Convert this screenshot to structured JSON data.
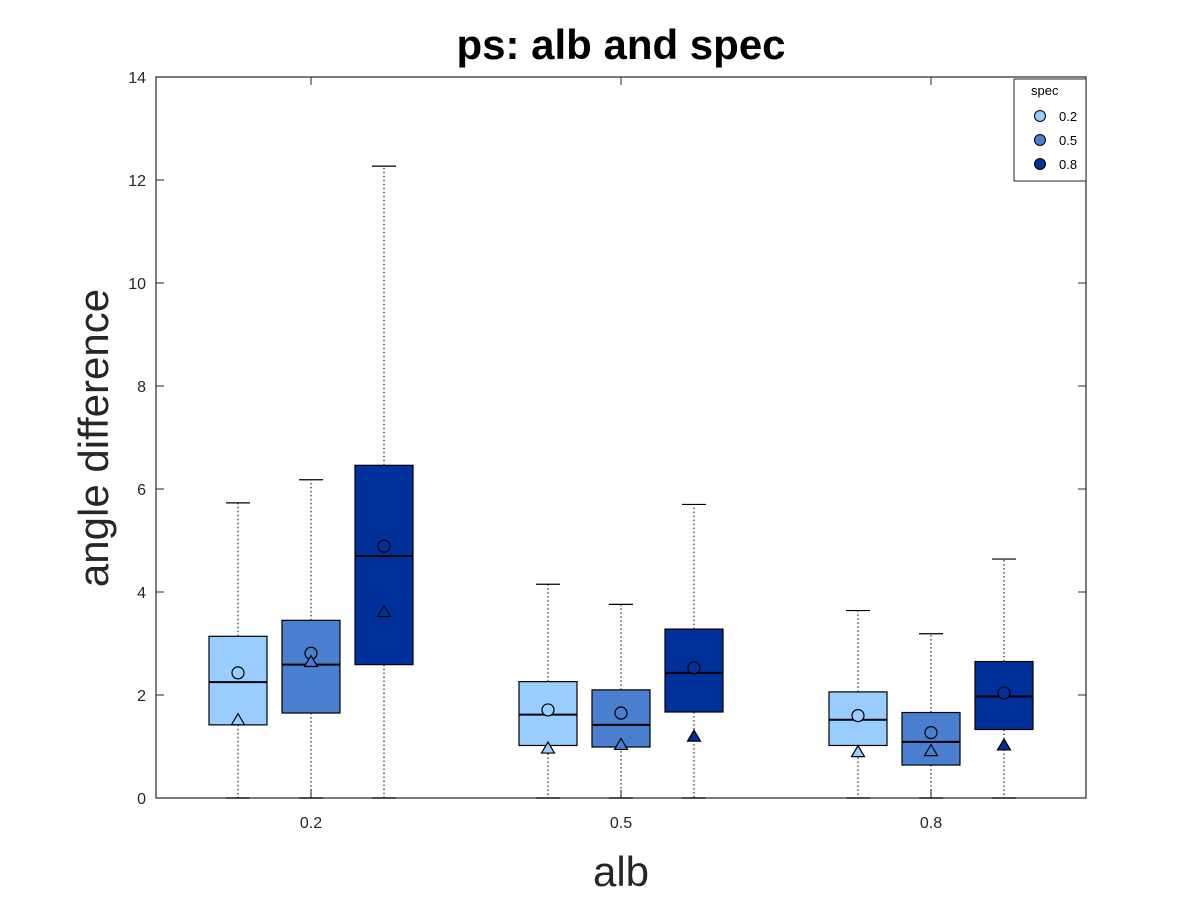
{
  "chart_data": {
    "type": "box",
    "title": "ps: alb and spec",
    "xlabel": "alb",
    "ylabel": "angle difference",
    "ylim": [
      0,
      14
    ],
    "yticks": [
      0,
      2,
      4,
      6,
      8,
      10,
      12,
      14
    ],
    "categories": [
      "0.2",
      "0.5",
      "0.8"
    ],
    "legend": {
      "title": "spec",
      "position": "top-right"
    },
    "series": [
      {
        "name": "0.2",
        "color": "#99ccff",
        "boxes": [
          {
            "whisker_low": 0,
            "q1": 1.42,
            "median": 2.25,
            "q3": 3.14,
            "whisker_high": 5.73,
            "mean": 2.43,
            "marker_triangle": 1.52
          },
          {
            "whisker_low": 0,
            "q1": 1.02,
            "median": 1.62,
            "q3": 2.26,
            "whisker_high": 4.15,
            "mean": 1.71,
            "marker_triangle": 0.97
          },
          {
            "whisker_low": 0,
            "q1": 1.02,
            "median": 1.52,
            "q3": 2.06,
            "whisker_high": 3.64,
            "mean": 1.6,
            "marker_triangle": 0.9
          }
        ]
      },
      {
        "name": "0.5",
        "color": "#4a7fd0",
        "boxes": [
          {
            "whisker_low": 0,
            "q1": 1.65,
            "median": 2.59,
            "q3": 3.45,
            "whisker_high": 6.18,
            "mean": 2.81,
            "marker_triangle": 2.65
          },
          {
            "whisker_low": 0,
            "q1": 0.99,
            "median": 1.42,
            "q3": 2.1,
            "whisker_high": 3.76,
            "mean": 1.65,
            "marker_triangle": 1.04
          },
          {
            "whisker_low": 0,
            "q1": 0.64,
            "median": 1.09,
            "q3": 1.66,
            "whisker_high": 3.19,
            "mean": 1.27,
            "marker_triangle": 0.92
          }
        ]
      },
      {
        "name": "0.8",
        "color": "#00309a",
        "boxes": [
          {
            "whisker_low": 0,
            "q1": 2.59,
            "median": 4.7,
            "q3": 6.46,
            "whisker_high": 12.27,
            "mean": 4.89,
            "marker_triangle": 3.62
          },
          {
            "whisker_low": 0,
            "q1": 1.67,
            "median": 2.43,
            "q3": 3.28,
            "whisker_high": 5.7,
            "mean": 2.53,
            "marker_triangle": 1.2
          },
          {
            "whisker_low": 0,
            "q1": 1.33,
            "median": 1.97,
            "q3": 2.65,
            "whisker_high": 4.64,
            "mean": 2.04,
            "marker_triangle": 1.03
          }
        ]
      }
    ],
    "grid": false
  }
}
